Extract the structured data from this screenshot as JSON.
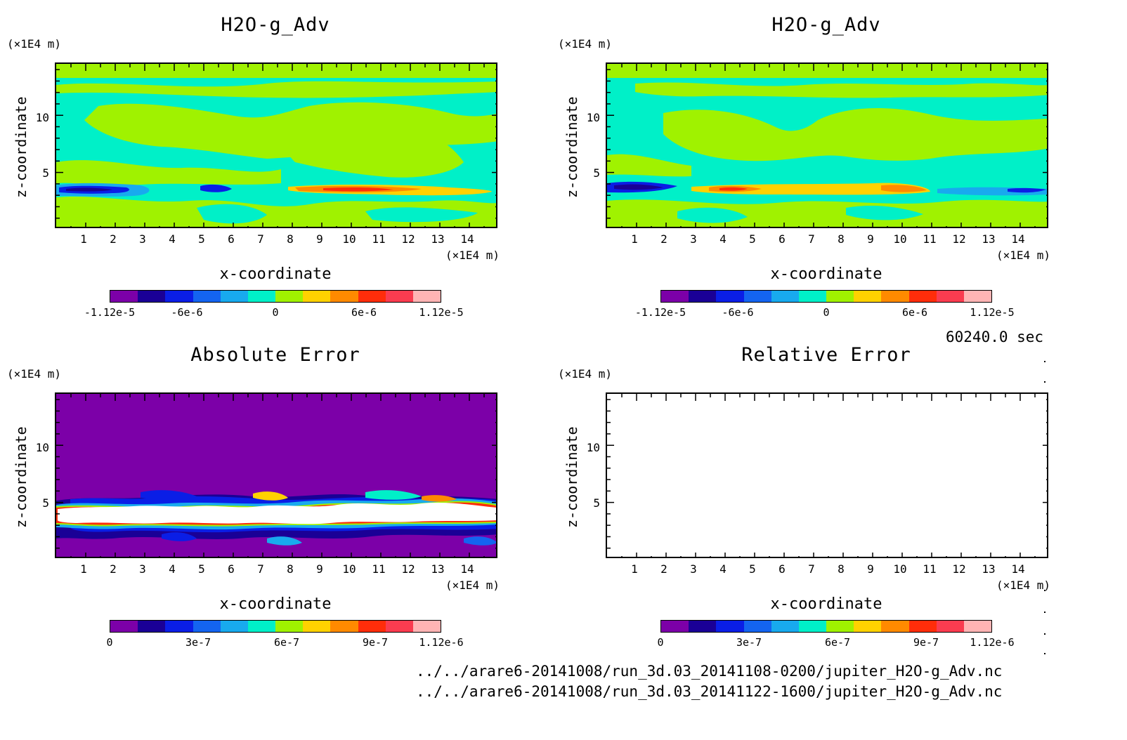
{
  "colors": {
    "cmap": [
      "#7c00a8",
      "#1a0096",
      "#0a1ee6",
      "#1464f0",
      "#18aaee",
      "#00f0c8",
      "#a0f200",
      "#ffd200",
      "#ff8a00",
      "#ff2d0a",
      "#fa3c50",
      "#ffb4b4"
    ],
    "frame": "#000000",
    "background": "#ffffff"
  },
  "panels": [
    {
      "id": "top-left",
      "title": "H2O-g_Adv",
      "y_unit": "(×1E4 m)",
      "x_unit": "(×1E4 m)",
      "xlabel": "x-coordinate",
      "ylabel": "z-coordinate",
      "xticks": [
        "1",
        "2",
        "3",
        "4",
        "5",
        "6",
        "7",
        "8",
        "9",
        "10",
        "11",
        "12",
        "13",
        "14"
      ],
      "yticks": [
        "10",
        "5"
      ],
      "colorbar_labels": [
        "-1.12e-5",
        "-6e-6",
        "0",
        "6e-6",
        "1.12e-5"
      ]
    },
    {
      "id": "top-right",
      "title": "H2O-g_Adv",
      "y_unit": "(×1E4 m)",
      "x_unit": "(×1E4 m)",
      "xlabel": "x-coordinate",
      "ylabel": "z-coordinate",
      "xticks": [
        "1",
        "2",
        "3",
        "4",
        "5",
        "6",
        "7",
        "8",
        "9",
        "10",
        "11",
        "12",
        "13",
        "14"
      ],
      "yticks": [
        "10",
        "5"
      ],
      "colorbar_labels": [
        "-1.12e-5",
        "-6e-6",
        "0",
        "6e-6",
        "1.12e-5"
      ]
    },
    {
      "id": "bottom-left",
      "title": "Absolute Error",
      "y_unit": "(×1E4 m)",
      "x_unit": "(×1E4 m)",
      "xlabel": "x-coordinate",
      "ylabel": "z-coordinate",
      "xticks": [
        "1",
        "2",
        "3",
        "4",
        "5",
        "6",
        "7",
        "8",
        "9",
        "10",
        "11",
        "12",
        "13",
        "14"
      ],
      "yticks": [
        "10",
        "5"
      ],
      "colorbar_labels": [
        "0",
        "3e-7",
        "6e-7",
        "9e-7",
        "1.12e-6"
      ]
    },
    {
      "id": "bottom-right",
      "title": "Relative Error",
      "y_unit": "(×1E4 m)",
      "x_unit": "(×1E4 m)",
      "xlabel": "x-coordinate",
      "ylabel": "z-coordinate",
      "xticks": [
        "1",
        "2",
        "3",
        "4",
        "5",
        "6",
        "7",
        "8",
        "9",
        "10",
        "11",
        "12",
        "13",
        "14"
      ],
      "yticks": [
        "10",
        "5"
      ],
      "colorbar_labels": [
        "0",
        "3e-7",
        "6e-7",
        "9e-7",
        "1.12e-6"
      ]
    }
  ],
  "timestamp": "60240.0 sec",
  "files": [
    "../../arare6-20141008/run_3d.03_20141108-0200/jupiter_H2O-g_Adv.nc",
    "../../arare6-20141008/run_3d.03_20141122-1600/jupiter_H2O-g_Adv.nc"
  ],
  "chart_data": [
    {
      "type": "heatmap",
      "title": "H2O-g_Adv",
      "xlabel": "x-coordinate",
      "ylabel": "z-coordinate",
      "x_unit": "(×1E4 m)",
      "y_unit": "(×1E4 m)",
      "xlim": [
        0,
        15
      ],
      "ylim": [
        0,
        14.5
      ],
      "colorbar": {
        "min": -1.12e-05,
        "max": 1.12e-05,
        "ticks": [
          -1.12e-05,
          -6e-06,
          0,
          6e-06,
          1.12e-05
        ],
        "levels": 12
      },
      "features": [
        {
          "desc": "negative band",
          "x": [
            0,
            3.3
          ],
          "z": 3.4,
          "value": -6e-06
        },
        {
          "desc": "negative band",
          "x": [
            5,
            6.2
          ],
          "z": 3.4,
          "value": -6e-06
        },
        {
          "desc": "positive band",
          "x": [
            7.8,
            14.8
          ],
          "z": 3.4,
          "value": 6e-06
        }
      ]
    },
    {
      "type": "heatmap",
      "title": "H2O-g_Adv",
      "xlabel": "x-coordinate",
      "ylabel": "z-coordinate",
      "x_unit": "(×1E4 m)",
      "y_unit": "(×1E4 m)",
      "xlim": [
        0,
        15
      ],
      "ylim": [
        0,
        14.5
      ],
      "colorbar": {
        "min": -1.12e-05,
        "max": 1.12e-05,
        "ticks": [
          -1.12e-05,
          -6e-06,
          0,
          6e-06,
          1.12e-05
        ],
        "levels": 12
      },
      "features": [
        {
          "desc": "negative band",
          "x": [
            0,
            2
          ],
          "z": 3.6,
          "value": -6e-06
        },
        {
          "desc": "positive band",
          "x": [
            3.2,
            11
          ],
          "z": 3.5,
          "value": 6e-06
        },
        {
          "desc": "negative band",
          "x": [
            11.2,
            15
          ],
          "z": 3.5,
          "value": -3e-06
        }
      ]
    },
    {
      "type": "heatmap",
      "title": "Absolute Error",
      "xlabel": "x-coordinate",
      "ylabel": "z-coordinate",
      "x_unit": "(×1E4 m)",
      "y_unit": "(×1E4 m)",
      "xlim": [
        0,
        15
      ],
      "ylim": [
        0,
        14.5
      ],
      "colorbar": {
        "min": 0,
        "max": 1.12e-06,
        "ticks": [
          0,
          3e-07,
          6e-07,
          9e-07,
          1.12e-06
        ],
        "levels": 11
      },
      "features": [
        {
          "desc": "saturated band (exceeds max)",
          "x": [
            0,
            15
          ],
          "z": [
            2.6,
            4.5
          ]
        },
        {
          "desc": "error structures",
          "x": [
            0,
            15
          ],
          "z": [
            0,
            6
          ]
        }
      ]
    },
    {
      "type": "heatmap",
      "title": "Relative Error",
      "xlabel": "x-coordinate",
      "ylabel": "z-coordinate",
      "x_unit": "(×1E4 m)",
      "y_unit": "(×1E4 m)",
      "xlim": [
        0,
        15
      ],
      "ylim": [
        0,
        14.5
      ],
      "colorbar": {
        "min": 0,
        "max": 1.12e-06,
        "ticks": [
          0,
          3e-07,
          6e-07,
          9e-07,
          1.12e-06
        ],
        "levels": 11
      },
      "features": []
    }
  ]
}
